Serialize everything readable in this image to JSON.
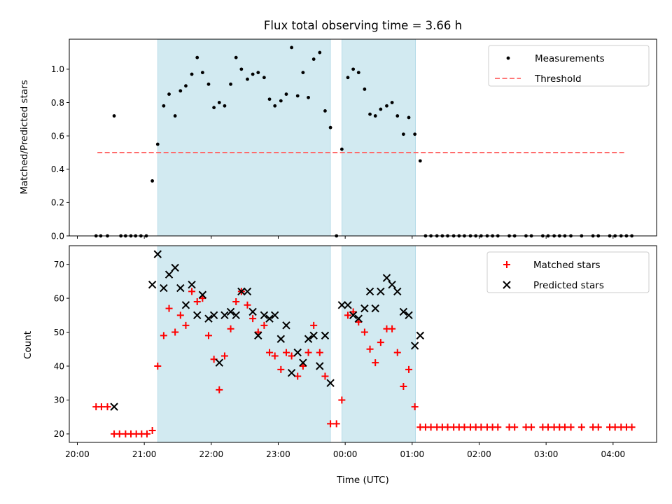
{
  "chart_data": {
    "title": "Flux total observing time = 3.66 h",
    "xlabel": "Time (UTC)",
    "x_ticks": [
      "20:00",
      "21:00",
      "22:00",
      "23:00",
      "00:00",
      "01:00",
      "02:00",
      "03:00",
      "04:00"
    ],
    "x_tick_hours": [
      20,
      21,
      22,
      23,
      24,
      25,
      26,
      27,
      28
    ],
    "x_range_hours": [
      19.88,
      28.65
    ],
    "shaded_intervals_hours": [
      [
        21.2,
        23.78
      ],
      [
        23.95,
        25.05
      ]
    ],
    "shade_color": "#add8e6",
    "panels": [
      {
        "type": "scatter",
        "ylabel": "Matched/Predicted stars",
        "ylim": [
          0,
          1.18
        ],
        "y_ticks": [
          "0.0",
          "0.2",
          "0.4",
          "0.6",
          "0.8",
          "1.0"
        ],
        "y_tick_values": [
          0,
          0.2,
          0.4,
          0.6,
          0.8,
          1.0
        ],
        "legend": {
          "position": "top-right",
          "entries": [
            "Measurements",
            "Threshold"
          ]
        },
        "threshold": {
          "name": "Threshold",
          "value": 0.5,
          "x_start": 20.3,
          "x_end": 28.2,
          "color": "#ff6666",
          "style": "dashed"
        },
        "series": [
          {
            "name": "Measurements",
            "color": "#000000",
            "marker": "dot",
            "x": [
              20.28,
              20.35,
              20.45,
              20.55,
              20.65,
              20.72,
              20.8,
              20.87,
              20.95,
              21.03,
              21.12,
              21.2,
              21.29,
              21.37,
              21.46,
              21.54,
              21.62,
              21.71,
              21.79,
              21.87,
              21.96,
              22.04,
              22.12,
              22.2,
              22.29,
              22.37,
              22.45,
              22.54,
              22.62,
              22.7,
              22.79,
              22.87,
              22.95,
              23.04,
              23.12,
              23.2,
              23.29,
              23.37,
              23.45,
              23.53,
              23.62,
              23.7,
              23.78,
              23.87,
              23.95,
              24.04,
              24.12,
              24.2,
              24.29,
              24.37,
              24.45,
              24.53,
              24.62,
              24.7,
              24.78,
              24.87,
              24.95,
              25.04,
              25.12,
              25.2,
              25.28,
              25.37,
              25.45,
              25.53,
              25.62,
              25.7,
              25.78,
              25.87,
              25.95,
              26.03,
              26.12,
              26.2,
              26.28,
              26.45,
              26.53,
              26.7,
              26.78,
              26.95,
              27.03,
              27.12,
              27.2,
              27.28,
              27.37,
              27.53,
              27.7,
              27.78,
              27.95,
              28.03,
              28.12,
              28.2,
              28.28
            ],
            "y": [
              0,
              0,
              0,
              0.72,
              0,
              0,
              0,
              0,
              0,
              0,
              0.33,
              0.55,
              0.78,
              0.85,
              0.72,
              0.87,
              0.9,
              0.97,
              1.07,
              0.98,
              0.91,
              0.77,
              0.8,
              0.78,
              0.91,
              1.07,
              1.0,
              0.94,
              0.97,
              0.98,
              0.95,
              0.82,
              0.78,
              0.81,
              0.85,
              1.13,
              0.84,
              0.98,
              0.83,
              1.06,
              1.1,
              0.75,
              0.65,
              0,
              0.52,
              0.95,
              1.0,
              0.98,
              0.88,
              0.73,
              0.72,
              0.76,
              0.78,
              0.8,
              0.72,
              0.61,
              0.71,
              0.61,
              0.45,
              0,
              0,
              0,
              0,
              0,
              0,
              0,
              0,
              0,
              0,
              0,
              0,
              0,
              0,
              0,
              0,
              0,
              0,
              0,
              0,
              0,
              0,
              0,
              0,
              0,
              0,
              0,
              0,
              0,
              0,
              0,
              0
            ]
          }
        ]
      },
      {
        "type": "scatter",
        "ylabel": "Count",
        "ylim": [
          17.5,
          75.5
        ],
        "y_ticks": [
          "20",
          "30",
          "40",
          "50",
          "60",
          "70"
        ],
        "y_tick_values": [
          20,
          30,
          40,
          50,
          60,
          70
        ],
        "legend": {
          "position": "top-right",
          "entries": [
            "Matched stars",
            "Predicted stars"
          ]
        },
        "series": [
          {
            "name": "Matched stars",
            "color": "#ff0000",
            "marker": "plus",
            "x": [
              20.28,
              20.36,
              20.45,
              20.55,
              20.63,
              20.72,
              20.8,
              20.88,
              20.96,
              21.04,
              21.12,
              21.2,
              21.29,
              21.37,
              21.46,
              21.54,
              21.62,
              21.71,
              21.79,
              21.87,
              21.96,
              22.04,
              22.12,
              22.2,
              22.29,
              22.37,
              22.45,
              22.54,
              22.62,
              22.7,
              22.79,
              22.87,
              22.95,
              23.04,
              23.12,
              23.2,
              23.29,
              23.37,
              23.45,
              23.53,
              23.62,
              23.7,
              23.78,
              23.87,
              23.95,
              24.04,
              24.12,
              24.2,
              24.29,
              24.37,
              24.45,
              24.53,
              24.62,
              24.7,
              24.78,
              24.87,
              24.95,
              25.04,
              25.12,
              25.2,
              25.28,
              25.37,
              25.45,
              25.53,
              25.62,
              25.7,
              25.78,
              25.87,
              25.95,
              26.03,
              26.12,
              26.2,
              26.28,
              26.45,
              26.53,
              26.7,
              26.78,
              26.95,
              27.03,
              27.12,
              27.2,
              27.28,
              27.37,
              27.53,
              27.7,
              27.78,
              27.95,
              28.03,
              28.12,
              28.2,
              28.28
            ],
            "y": [
              28,
              28,
              28,
              20,
              20,
              20,
              20,
              20,
              20,
              20,
              21,
              40,
              49,
              57,
              50,
              55,
              52,
              62,
              59,
              60,
              49,
              42,
              33,
              43,
              51,
              59,
              62,
              58,
              54,
              50,
              52,
              44,
              43,
              39,
              44,
              43,
              37,
              40,
              44,
              52,
              44,
              37,
              23,
              23,
              30,
              55,
              56,
              53,
              50,
              45,
              41,
              47,
              51,
              51,
              44,
              34,
              39,
              28,
              22,
              22,
              22,
              22,
              22,
              22,
              22,
              22,
              22,
              22,
              22,
              22,
              22,
              22,
              22,
              22,
              22,
              22,
              22,
              22,
              22,
              22,
              22,
              22,
              22,
              22,
              22,
              22,
              22,
              22,
              22,
              22,
              22
            ]
          },
          {
            "name": "Predicted stars",
            "color": "#000000",
            "marker": "cross",
            "x": [
              20.55,
              21.12,
              21.2,
              21.29,
              21.37,
              21.46,
              21.54,
              21.62,
              21.71,
              21.79,
              21.87,
              21.96,
              22.04,
              22.12,
              22.2,
              22.29,
              22.37,
              22.45,
              22.54,
              22.62,
              22.7,
              22.79,
              22.87,
              22.95,
              23.04,
              23.12,
              23.2,
              23.29,
              23.37,
              23.45,
              23.53,
              23.62,
              23.7,
              23.78,
              23.95,
              24.04,
              24.12,
              24.2,
              24.29,
              24.37,
              24.45,
              24.53,
              24.62,
              24.7,
              24.78,
              24.87,
              24.95,
              25.04,
              25.12
            ],
            "y": [
              28,
              64,
              73,
              63,
              67,
              69,
              63,
              58,
              64,
              55,
              61,
              54,
              55,
              41,
              55,
              56,
              55,
              62,
              62,
              56,
              49,
              55,
              54,
              55,
              48,
              52,
              38,
              44,
              41,
              48,
              49,
              40,
              49,
              35,
              58,
              58,
              55,
              54,
              57,
              62,
              57,
              62,
              66,
              64,
              62,
              56,
              55,
              46,
              49
            ]
          }
        ]
      }
    ]
  }
}
